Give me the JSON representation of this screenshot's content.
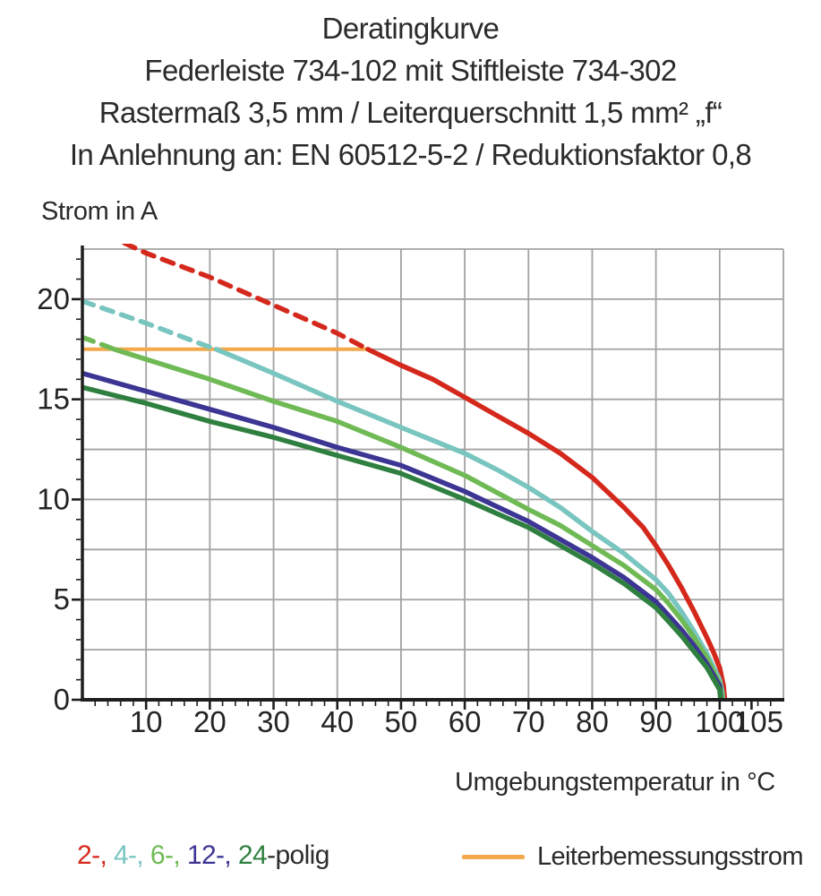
{
  "title": {
    "line1": "Deratingkurve",
    "line2": "Federleiste 734-102 mit Stiftleiste 734-302",
    "line3": "Rastermaß 3,5 mm / Leiterquerschnitt 1,5 mm² „f“",
    "line4": "In Anlehnung an: EN 60512-5-2 / Reduktionsfaktor 0,8"
  },
  "legend": {
    "poles": [
      {
        "label": "2-, ",
        "color": "#d5281c"
      },
      {
        "label": "4-, ",
        "color": "#79c5c0"
      },
      {
        "label": "6-, ",
        "color": "#6fba55"
      },
      {
        "label": "12-, ",
        "color": "#3c3593"
      },
      {
        "label": "24",
        "color": "#2f8040"
      },
      {
        "label": "-polig",
        "color": "#2d2d2d"
      }
    ],
    "rated": {
      "label": "Leiterbemessungsstrom",
      "color": "#f3a94a"
    }
  },
  "chart_data": {
    "type": "line",
    "title": "Deratingkurve Federleiste 734-102 mit Stiftleiste 734-302",
    "xlabel": "Umgebungstemperatur in °C",
    "ylabel": "Strom in A",
    "xlim": [
      0,
      110
    ],
    "ylim": [
      0,
      22.5
    ],
    "grid": true,
    "x_grid_step": 10,
    "y_grid_step": 2.5,
    "x_ticks": [
      10,
      20,
      30,
      40,
      50,
      60,
      70,
      80,
      90,
      100,
      105
    ],
    "x_minor_step": 2,
    "y_ticks": [
      0,
      5,
      10,
      15,
      20
    ],
    "y_minor_step": 1,
    "colors": {
      "red": "#d5281c",
      "cyan": "#79c5c0",
      "lightgreen": "#6fba55",
      "navy": "#3c3593",
      "darkgreen": "#2f8040",
      "orange": "#f3a94a",
      "grid": "#a2a2a2",
      "axis": "#1e1e1e"
    },
    "series": [
      {
        "name": "Leiterbemessungsstrom",
        "color": "#f3a94a",
        "width": 4,
        "segments": [
          {
            "style": "solid",
            "points": [
              [
                0,
                17.5
              ],
              [
                44.8,
                17.5
              ]
            ]
          }
        ]
      },
      {
        "name": "2-polig",
        "color": "#d5281c",
        "width": 5.5,
        "segments": [
          {
            "style": "dashed",
            "points": [
              [
                6.6,
                22.8
              ],
              [
                10,
                22.3
              ],
              [
                20,
                21.1
              ],
              [
                30,
                19.7
              ],
              [
                40,
                18.3
              ],
              [
                44.8,
                17.5
              ]
            ]
          },
          {
            "style": "solid",
            "points": [
              [
                44.8,
                17.5
              ],
              [
                50,
                16.7
              ],
              [
                55,
                16.0
              ],
              [
                60,
                15.1
              ],
              [
                65,
                14.2
              ],
              [
                70,
                13.3
              ],
              [
                75,
                12.3
              ],
              [
                80,
                11.1
              ],
              [
                85,
                9.6
              ],
              [
                88,
                8.6
              ],
              [
                90,
                7.7
              ],
              [
                92,
                6.7
              ],
              [
                94,
                5.6
              ],
              [
                96,
                4.4
              ],
              [
                98,
                3.1
              ],
              [
                99,
                2.4
              ],
              [
                100,
                1.6
              ],
              [
                100.6,
                0.7
              ],
              [
                100.8,
                0
              ]
            ]
          }
        ]
      },
      {
        "name": "4-polig",
        "color": "#79c5c0",
        "width": 5.5,
        "segments": [
          {
            "style": "dashed",
            "points": [
              [
                0,
                19.9
              ],
              [
                10,
                18.8
              ],
              [
                20,
                17.6
              ],
              [
                21,
                17.5
              ]
            ]
          },
          {
            "style": "solid",
            "points": [
              [
                21,
                17.5
              ],
              [
                30,
                16.3
              ],
              [
                40,
                14.9
              ],
              [
                50,
                13.6
              ],
              [
                60,
                12.3
              ],
              [
                65,
                11.5
              ],
              [
                70,
                10.6
              ],
              [
                75,
                9.6
              ],
              [
                80,
                8.4
              ],
              [
                85,
                7.3
              ],
              [
                90,
                6.0
              ],
              [
                92,
                5.3
              ],
              [
                94,
                4.4
              ],
              [
                96,
                3.4
              ],
              [
                98,
                2.3
              ],
              [
                100,
                1.0
              ],
              [
                100.4,
                0.4
              ],
              [
                100.5,
                0
              ]
            ]
          }
        ]
      },
      {
        "name": "6-polig",
        "color": "#6fba55",
        "width": 5.5,
        "segments": [
          {
            "style": "dashed",
            "points": [
              [
                0,
                18.1
              ],
              [
                5,
                17.5
              ]
            ]
          },
          {
            "style": "solid",
            "points": [
              [
                5,
                17.5
              ],
              [
                10,
                17.0
              ],
              [
                20,
                16.0
              ],
              [
                30,
                14.9
              ],
              [
                40,
                13.9
              ],
              [
                50,
                12.6
              ],
              [
                60,
                11.2
              ],
              [
                70,
                9.5
              ],
              [
                75,
                8.7
              ],
              [
                80,
                7.7
              ],
              [
                85,
                6.7
              ],
              [
                90,
                5.5
              ],
              [
                92,
                4.8
              ],
              [
                94,
                4.0
              ],
              [
                96,
                3.1
              ],
              [
                98,
                2.1
              ],
              [
                100,
                0.8
              ],
              [
                100.3,
                0.3
              ],
              [
                100.4,
                0
              ]
            ]
          }
        ]
      },
      {
        "name": "12-polig",
        "color": "#3c3593",
        "width": 5.5,
        "segments": [
          {
            "style": "solid",
            "points": [
              [
                0,
                16.3
              ],
              [
                10,
                15.4
              ],
              [
                20,
                14.5
              ],
              [
                30,
                13.6
              ],
              [
                40,
                12.6
              ],
              [
                50,
                11.7
              ],
              [
                60,
                10.4
              ],
              [
                70,
                8.9
              ],
              [
                75,
                8.0
              ],
              [
                80,
                7.1
              ],
              [
                85,
                6.1
              ],
              [
                90,
                4.9
              ],
              [
                92,
                4.2
              ],
              [
                94,
                3.5
              ],
              [
                96,
                2.7
              ],
              [
                98,
                1.8
              ],
              [
                100,
                0.7
              ],
              [
                100.2,
                0
              ]
            ]
          }
        ]
      },
      {
        "name": "24-polig",
        "color": "#2f8040",
        "width": 5.5,
        "segments": [
          {
            "style": "solid",
            "points": [
              [
                0,
                15.6
              ],
              [
                10,
                14.8
              ],
              [
                20,
                13.9
              ],
              [
                30,
                13.1
              ],
              [
                40,
                12.2
              ],
              [
                50,
                11.3
              ],
              [
                60,
                10.0
              ],
              [
                70,
                8.6
              ],
              [
                75,
                7.7
              ],
              [
                80,
                6.8
              ],
              [
                85,
                5.8
              ],
              [
                90,
                4.6
              ],
              [
                92,
                3.9
              ],
              [
                94,
                3.2
              ],
              [
                96,
                2.4
              ],
              [
                98,
                1.6
              ],
              [
                100,
                0.5
              ],
              [
                100.15,
                0
              ]
            ]
          }
        ]
      }
    ]
  }
}
